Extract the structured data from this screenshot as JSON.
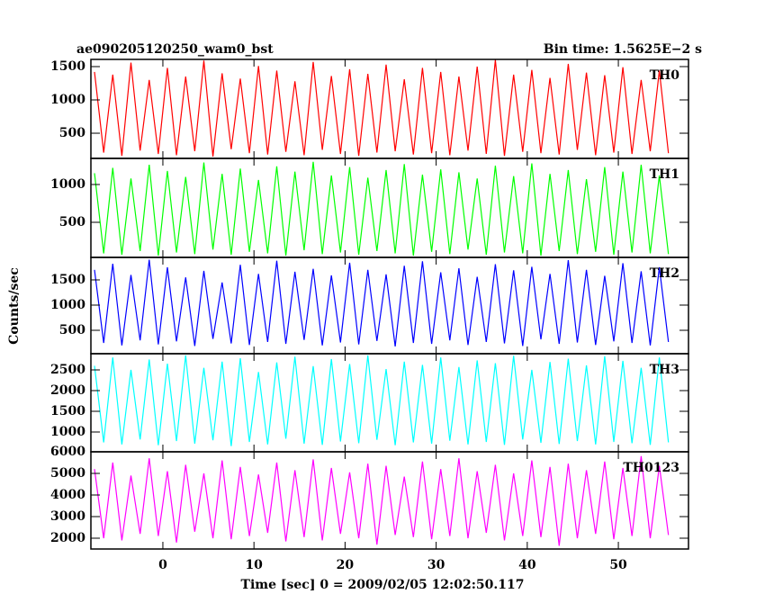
{
  "chart_data": [
    {
      "type": "line",
      "title": "ae090205120250_wam0_bst",
      "subtitle": "Bin time: 1.5625E−2 s",
      "y_label": "Counts/sec",
      "x": [
        -7.5,
        -6.5,
        -5.5,
        -4.5,
        -3.5,
        -2.5,
        -1.5,
        -0.5,
        0.5,
        1.5,
        2.5,
        3.5,
        4.5,
        5.5,
        6.5,
        7.5,
        8.5,
        9.5,
        10.5,
        11.5,
        12.5,
        13.5,
        14.5,
        15.5,
        16.5,
        17.5,
        18.5,
        19.5,
        20.5,
        21.5,
        22.5,
        23.5,
        24.5,
        25.5,
        26.5,
        27.5,
        28.5,
        29.5,
        30.5,
        31.5,
        32.5,
        33.5,
        34.5,
        35.5,
        36.5,
        37.5,
        38.5,
        39.5,
        40.5,
        41.5,
        42.5,
        43.5,
        44.5,
        45.5,
        46.5,
        47.5,
        48.5,
        49.5,
        50.5,
        51.5,
        52.5,
        53.5,
        54.5,
        55.5
      ],
      "series": [
        {
          "name": "TH0",
          "color": "#ff0000",
          "values": [
            1420,
            210,
            1380,
            160,
            1560,
            240,
            1300,
            190,
            1480,
            170,
            1350,
            230,
            1590,
            150,
            1400,
            260,
            1320,
            200,
            1510,
            180,
            1440,
            220,
            1280,
            170,
            1570,
            250,
            1360,
            190,
            1460,
            160,
            1390,
            210,
            1530,
            230,
            1310,
            180,
            1480,
            200,
            1420,
            170,
            1350,
            240,
            1500,
            190,
            1600,
            160,
            1380,
            220,
            1450,
            200,
            1330,
            180,
            1540,
            250,
            1410,
            170,
            1370,
            210,
            1490,
            190,
            1300,
            230,
            1440,
            200
          ]
        }
      ],
      "xlim": [
        -7.9,
        57.7
      ],
      "xticks": [
        0,
        10,
        20,
        30,
        40,
        50
      ],
      "ylim": [
        122,
        1608
      ],
      "yticks": [
        500,
        1000,
        1500
      ]
    },
    {
      "type": "line",
      "x": [
        -7.5,
        -6.5,
        -5.5,
        -4.5,
        -3.5,
        -2.5,
        -1.5,
        -0.5,
        0.5,
        1.5,
        2.5,
        3.5,
        4.5,
        5.5,
        6.5,
        7.5,
        8.5,
        9.5,
        10.5,
        11.5,
        12.5,
        13.5,
        14.5,
        15.5,
        16.5,
        17.5,
        18.5,
        19.5,
        20.5,
        21.5,
        22.5,
        23.5,
        24.5,
        25.5,
        26.5,
        27.5,
        28.5,
        29.5,
        30.5,
        31.5,
        32.5,
        33.5,
        34.5,
        35.5,
        36.5,
        37.5,
        38.5,
        39.5,
        40.5,
        41.5,
        42.5,
        43.5,
        44.5,
        45.5,
        46.5,
        47.5,
        48.5,
        49.5,
        50.5,
        51.5,
        52.5,
        53.5,
        54.5,
        55.5
      ],
      "series": [
        {
          "name": "TH1",
          "color": "#00ff00",
          "values": [
            1150,
            90,
            1220,
            70,
            1080,
            120,
            1260,
            60,
            1180,
            100,
            1100,
            80,
            1290,
            140,
            1140,
            70,
            1210,
            110,
            1060,
            90,
            1240,
            60,
            1170,
            130,
            1300,
            80,
            1120,
            100,
            1230,
            70,
            1090,
            120,
            1190,
            90,
            1270,
            60,
            1130,
            110,
            1200,
            80,
            1160,
            140,
            1080,
            70,
            1250,
            100,
            1110,
            90,
            1280,
            60,
            1140,
            120,
            1190,
            80,
            1070,
            110,
            1230,
            70,
            1170,
            100,
            1260,
            90,
            1120,
            80
          ]
        }
      ],
      "xlim": [
        -7.9,
        57.7
      ],
      "xticks": [
        0,
        10,
        20,
        30,
        40,
        50
      ],
      "ylim": [
        36,
        1345
      ],
      "yticks": [
        500,
        1000
      ]
    },
    {
      "type": "line",
      "x": [
        -7.5,
        -6.5,
        -5.5,
        -4.5,
        -3.5,
        -2.5,
        -1.5,
        -0.5,
        0.5,
        1.5,
        2.5,
        3.5,
        4.5,
        5.5,
        6.5,
        7.5,
        8.5,
        9.5,
        10.5,
        11.5,
        12.5,
        13.5,
        14.5,
        15.5,
        16.5,
        17.5,
        18.5,
        19.5,
        20.5,
        21.5,
        22.5,
        23.5,
        24.5,
        25.5,
        26.5,
        27.5,
        28.5,
        29.5,
        30.5,
        31.5,
        32.5,
        33.5,
        34.5,
        35.5,
        36.5,
        37.5,
        38.5,
        39.5,
        40.5,
        41.5,
        42.5,
        43.5,
        44.5,
        45.5,
        46.5,
        47.5,
        48.5,
        49.5,
        50.5,
        51.5,
        52.5,
        53.5,
        54.5,
        55.5
      ],
      "series": [
        {
          "name": "TH2",
          "color": "#0000ff",
          "values": [
            1700,
            250,
            1820,
            200,
            1600,
            300,
            1900,
            220,
            1750,
            280,
            1550,
            190,
            1680,
            330,
            1450,
            240,
            1800,
            210,
            1620,
            270,
            1880,
            230,
            1660,
            310,
            1720,
            200,
            1590,
            260,
            1840,
            220,
            1700,
            290,
            1610,
            180,
            1780,
            250,
            1870,
            230,
            1650,
            300,
            1730,
            210,
            1560,
            270,
            1810,
            240,
            1690,
            190,
            1760,
            320,
            1620,
            230,
            1890,
            260,
            1700,
            210,
            1580,
            280,
            1830,
            250,
            1670,
            200,
            1750,
            270
          ]
        }
      ],
      "xlim": [
        -7.9,
        57.7
      ],
      "xticks": [
        0,
        10,
        20,
        30,
        40,
        50
      ],
      "ylim": [
        36,
        1946
      ],
      "yticks": [
        500,
        1000,
        1500
      ]
    },
    {
      "type": "line",
      "x": [
        -7.5,
        -6.5,
        -5.5,
        -4.5,
        -3.5,
        -2.5,
        -1.5,
        -0.5,
        0.5,
        1.5,
        2.5,
        3.5,
        4.5,
        5.5,
        6.5,
        7.5,
        8.5,
        9.5,
        10.5,
        11.5,
        12.5,
        13.5,
        14.5,
        15.5,
        16.5,
        17.5,
        18.5,
        19.5,
        20.5,
        21.5,
        22.5,
        23.5,
        24.5,
        25.5,
        26.5,
        27.5,
        28.5,
        29.5,
        30.5,
        31.5,
        32.5,
        33.5,
        34.5,
        35.5,
        36.5,
        37.5,
        38.5,
        39.5,
        40.5,
        41.5,
        42.5,
        43.5,
        44.5,
        45.5,
        46.5,
        47.5,
        48.5,
        49.5,
        50.5,
        51.5,
        52.5,
        53.5,
        54.5,
        55.5
      ],
      "series": [
        {
          "name": "TH3",
          "color": "#00ffff",
          "values": [
            2600,
            750,
            2800,
            700,
            2500,
            820,
            2750,
            680,
            2650,
            780,
            2850,
            720,
            2550,
            800,
            2700,
            660,
            2780,
            760,
            2450,
            700,
            2680,
            840,
            2820,
            720,
            2590,
            690,
            2760,
            770,
            2640,
            730,
            2850,
            810,
            2520,
            680,
            2700,
            750,
            2620,
            720,
            2800,
            790,
            2570,
            700,
            2730,
            760,
            2660,
            690,
            2840,
            820,
            2500,
            740,
            2690,
            710,
            2770,
            780,
            2610,
            700,
            2830,
            760,
            2720,
            730,
            2550,
            690,
            2800,
            750
          ]
        }
      ],
      "xlim": [
        -7.9,
        57.7
      ],
      "xticks": [
        0,
        10,
        20,
        30,
        40,
        50
      ],
      "ylim": [
        522,
        2891
      ],
      "yticks": [
        1000,
        1500,
        2000,
        2500
      ]
    },
    {
      "type": "line",
      "x_label": "Time [sec] 0 = 2009/02/05 12:02:50.117",
      "x": [
        -7.5,
        -6.5,
        -5.5,
        -4.5,
        -3.5,
        -2.5,
        -1.5,
        -0.5,
        0.5,
        1.5,
        2.5,
        3.5,
        4.5,
        5.5,
        6.5,
        7.5,
        8.5,
        9.5,
        10.5,
        11.5,
        12.5,
        13.5,
        14.5,
        15.5,
        16.5,
        17.5,
        18.5,
        19.5,
        20.5,
        21.5,
        22.5,
        23.5,
        24.5,
        25.5,
        26.5,
        27.5,
        28.5,
        29.5,
        30.5,
        31.5,
        32.5,
        33.5,
        34.5,
        35.5,
        36.5,
        37.5,
        38.5,
        39.5,
        40.5,
        41.5,
        42.5,
        43.5,
        44.5,
        45.5,
        46.5,
        47.5,
        48.5,
        49.5,
        50.5,
        51.5,
        52.5,
        53.5,
        54.5,
        55.5
      ],
      "series": [
        {
          "name": "TH0123",
          "color": "#ff00ff",
          "values": [
            5200,
            2000,
            5500,
            1900,
            4900,
            2200,
            5700,
            2100,
            5100,
            1800,
            5400,
            2300,
            5000,
            2000,
            5600,
            1950,
            5300,
            2100,
            4950,
            2250,
            5500,
            1850,
            5150,
            2050,
            5650,
            1900,
            5250,
            2200,
            5050,
            2000,
            5450,
            1700,
            5350,
            2150,
            4850,
            2050,
            5550,
            1950,
            5200,
            2100,
            5700,
            2000,
            5100,
            2250,
            5400,
            1900,
            5000,
            2100,
            5600,
            2050,
            5300,
            1650,
            5450,
            2000,
            5150,
            2200,
            5550,
            1950,
            5250,
            2100,
            5800,
            2000,
            5350,
            2150
          ]
        }
      ],
      "xlim": [
        -7.9,
        57.7
      ],
      "xticks": [
        0,
        10,
        20,
        30,
        40,
        50
      ],
      "ylim": [
        1500,
        6000
      ],
      "yticks": [
        2000,
        3000,
        4000,
        5000,
        6000
      ]
    }
  ]
}
